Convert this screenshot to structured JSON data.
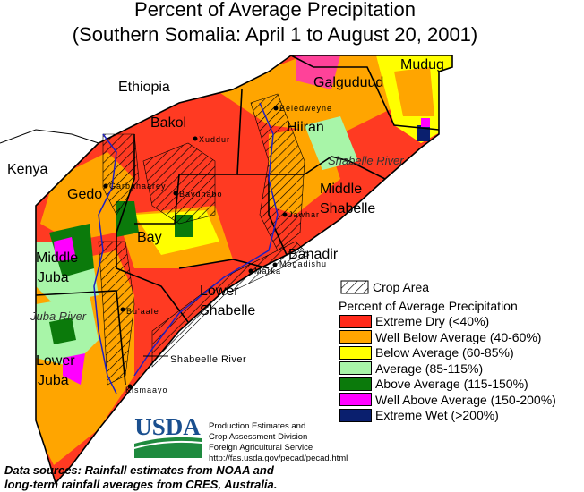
{
  "title": {
    "line1": "Percent of Average Precipitation",
    "line2": "(Southern Somalia: April 1 to August 20, 2001)"
  },
  "countries": {
    "ethiopia": "Ethiopia",
    "kenya": "Kenya"
  },
  "regions": {
    "mudug": "Mudug",
    "galguduud": "Galguduud",
    "bakol": "Bakol",
    "hiiran": "Hiiran",
    "gedo": "Gedo",
    "bay": "Bay",
    "middle_shabelle_1": "Middle",
    "middle_shabelle_2": "Shabelle",
    "middle_juba_1": "Middle",
    "middle_juba_2": "Juba",
    "banadir": "Banadir",
    "lower_shabelle_1": "Lower",
    "lower_shabelle_2": "Shabelle",
    "lower_juba_1": "Lower",
    "lower_juba_2": "Juba"
  },
  "towns": {
    "beledweyne": "Beledweyne",
    "xuddur": "Xuddur",
    "garbahaarey": "Garbahaarey",
    "baydhabo": "Baydhabo",
    "jawhar": "Jawhar",
    "marka": "Marka",
    "mogadishu": "Mogadishu",
    "bulaale": "Bu'aale",
    "kismaayo": "Kismaayo"
  },
  "rivers": {
    "shabelle_upper": "Shabelle River",
    "juba": "Juba River",
    "shabelle_label": "Shabeelle River"
  },
  "legend": {
    "crop_area": "Crop Area",
    "title": "Percent of Average Precipitation",
    "items": [
      {
        "label": "Extreme Dry (<40%)",
        "color": "#ff2a1a"
      },
      {
        "label": "Well Below Average (40-60%)",
        "color": "#ffa500"
      },
      {
        "label": "Below Average (60-85%)",
        "color": "#ffff00"
      },
      {
        "label": "Average (85-115%)",
        "color": "#a8f5a8"
      },
      {
        "label": "Above Average (115-150%)",
        "color": "#0b7a0b"
      },
      {
        "label": "Well Above Average (150-200%)",
        "color": "#ff00ff"
      },
      {
        "label": "Extreme Wet (>200%)",
        "color": "#0a1f6e"
      }
    ]
  },
  "logo": "USDA",
  "credit": [
    "Production Estimates and",
    "Crop Assessment Division",
    "Foreign Agricultural Service",
    "http://fas.usda.gov/pecad/pecad.html"
  ],
  "sources": [
    "Data sources:  Rainfall estimates from NOAA and",
    "long-term rainfall averages from CRES, Australia."
  ]
}
